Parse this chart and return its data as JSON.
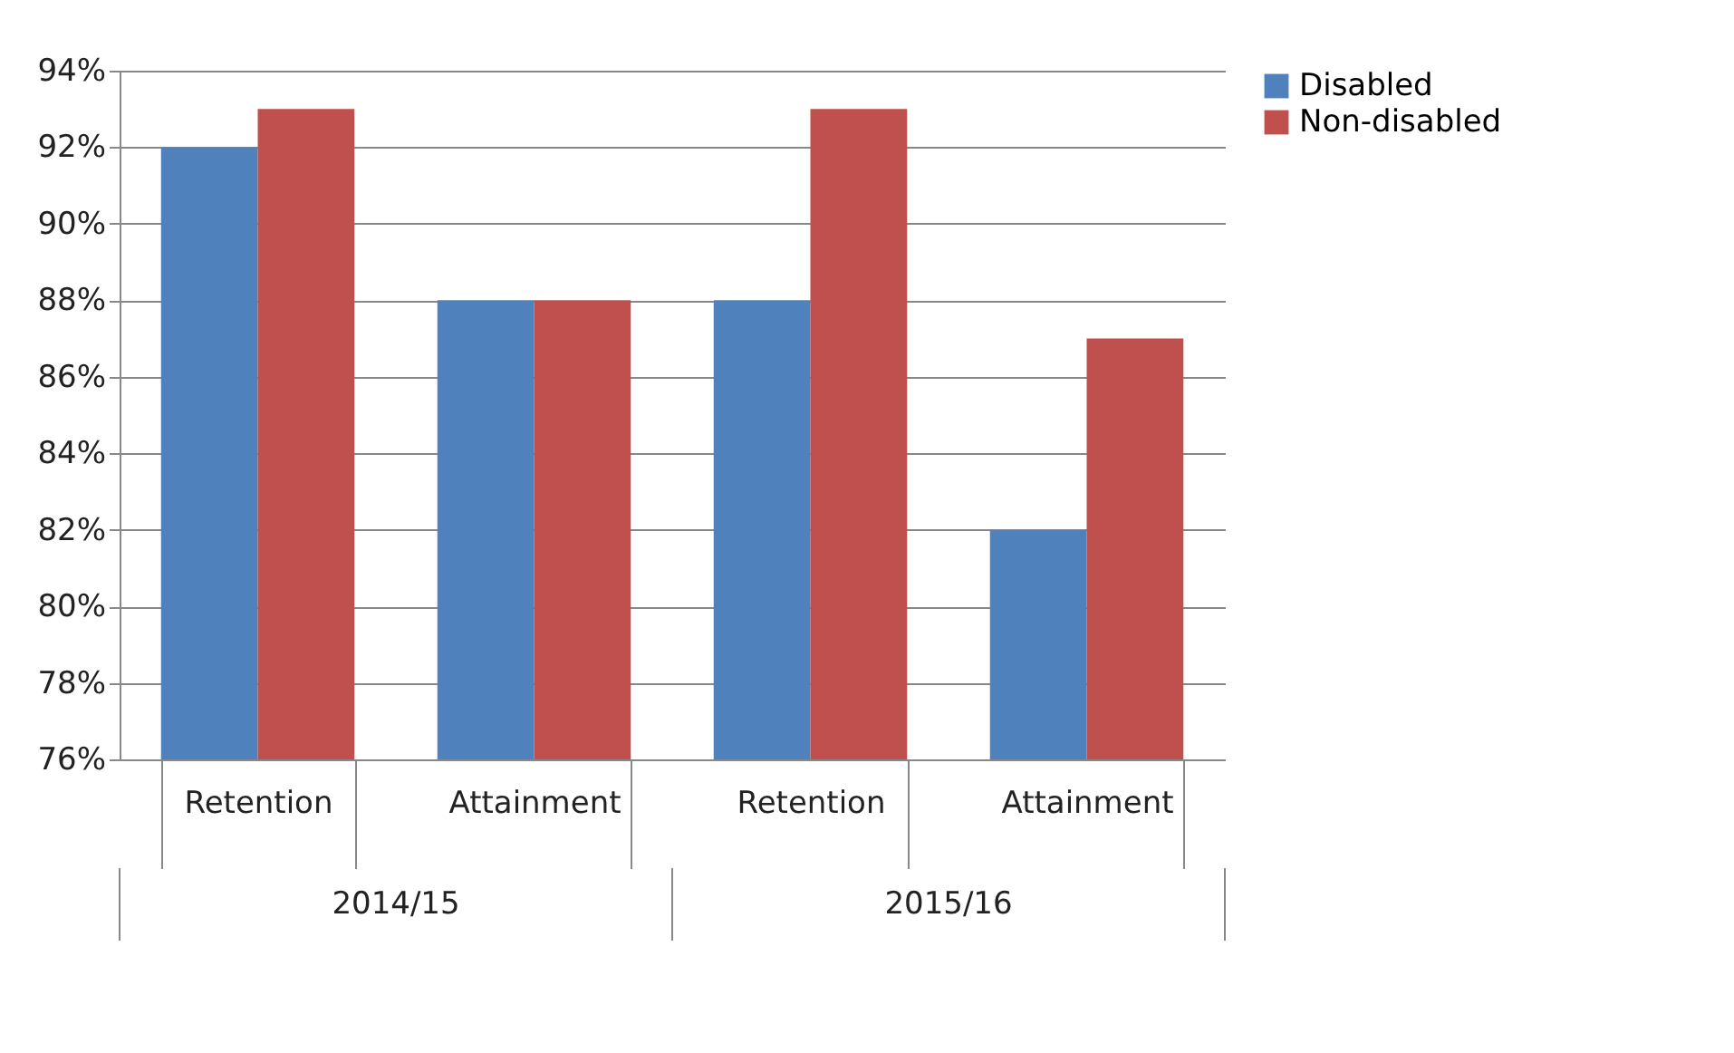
{
  "chart_data": {
    "type": "bar",
    "categories": [
      "Retention",
      "Attainment",
      "Retention",
      "Attainment"
    ],
    "series": [
      {
        "name": "Disabled",
        "color": "#4f81bd",
        "values": [
          92,
          88,
          88,
          82
        ]
      },
      {
        "name": "Non-disabled",
        "color": "#c0504d",
        "values": [
          93,
          88,
          93,
          87
        ]
      }
    ],
    "ylim": [
      76,
      94
    ],
    "yticks": [
      {
        "value": 76,
        "label": "76%"
      },
      {
        "value": 78,
        "label": "78%"
      },
      {
        "value": 80,
        "label": "80%"
      },
      {
        "value": 82,
        "label": "82%"
      },
      {
        "value": 84,
        "label": "84%"
      },
      {
        "value": 86,
        "label": "86%"
      },
      {
        "value": 88,
        "label": "88%"
      },
      {
        "value": 90,
        "label": "90%"
      },
      {
        "value": 92,
        "label": "92%"
      },
      {
        "value": 94,
        "label": "94%"
      }
    ],
    "annotations": [
      "2014/15",
      "2015/16"
    ],
    "grid": "y",
    "legend": "right"
  }
}
